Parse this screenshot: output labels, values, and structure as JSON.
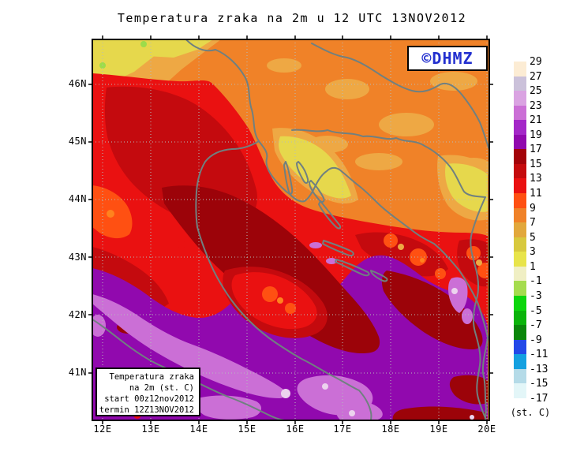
{
  "title": "Temperatura zraka na 2m u 12 UTC 13NOV2012",
  "badge": {
    "text": "©DHMZ",
    "color": "#2330cf"
  },
  "axes": {
    "lat": [
      "46N",
      "45N",
      "44N",
      "43N",
      "42N",
      "41N"
    ],
    "lon": [
      "12E",
      "13E",
      "14E",
      "15E",
      "16E",
      "17E",
      "18E",
      "19E",
      "20E"
    ]
  },
  "legend": {
    "lines": [
      "Temperatura zraka",
      "na 2m (st. C)",
      "start 00z12nov2012",
      "termin 12Z13NOV2012"
    ]
  },
  "colorbar": {
    "labels": [
      "29",
      "27",
      "25",
      "23",
      "21",
      "19",
      "17",
      "15",
      "13",
      "11",
      "9",
      "7",
      "5",
      "3",
      "1",
      "-1",
      "-3",
      "-5",
      "-7",
      "-9",
      "-11",
      "-13",
      "-15",
      "-17"
    ],
    "colors": [
      "#fcecd4",
      "#cbc1da",
      "#daa3e2",
      "#cb6fd6",
      "#a428c8",
      "#9109ae",
      "#a30309",
      "#c50b0d",
      "#ea1111",
      "#ff5012",
      "#f08228",
      "#e2a83c",
      "#d8c93e",
      "#e8e44a",
      "#f0efc4",
      "#a5dc4e",
      "#0cd60c",
      "#0ab40a",
      "#0a860a",
      "#2349e8",
      "#14a0e0",
      "#b5dbe8",
      "#e3f6f8",
      "#ffffff"
    ],
    "unit": "(st. C)"
  },
  "palette": {
    "orange": "#f08228",
    "amber": "#eea844",
    "yellow": "#e6d84c",
    "green": "#9ddc4a",
    "orangered": "#ff5012",
    "bright": "#ff831e",
    "red": "#ea1111",
    "darkred": "#c40a0e",
    "maroon": "#9c0309",
    "purple": "#9109ae",
    "orchid": "#cb6fd6",
    "pink": "#ecd3ee",
    "grid": "#b6bcbc",
    "border_line": "#708080",
    "frame": "#000000"
  }
}
